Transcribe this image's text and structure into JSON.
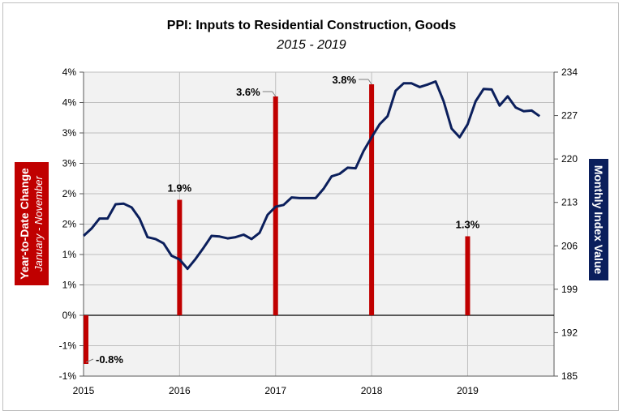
{
  "chart_data": {
    "type": "bar+line",
    "title": "PPI: Inputs to Residential Construction, Goods",
    "subtitle": "2015 - 2019",
    "left_axis": {
      "label": "Year-to-Date Change",
      "sublabel": "January - November",
      "range": [
        -1,
        4
      ],
      "tick_labels": [
        "4%",
        "4%",
        "3%",
        "3%",
        "2%",
        "2%",
        "1%",
        "1%",
        "0%",
        "-1%",
        "-1%"
      ]
    },
    "right_axis": {
      "label": "Monthly Index Value",
      "range": [
        185,
        234
      ],
      "tick_labels": [
        "234",
        "227",
        "220",
        "213",
        "206",
        "199",
        "192",
        "185"
      ],
      "tick_values": [
        234,
        227,
        220,
        213,
        206,
        199,
        192,
        185
      ]
    },
    "x_axis": {
      "tick_labels": [
        "2015",
        "2016",
        "2017",
        "2018",
        "2019"
      ],
      "tick_values": [
        2015,
        2016,
        2017,
        2018,
        2019
      ]
    },
    "grid": true,
    "bars": {
      "name": "Year-to-Date Change",
      "color": "#c00000",
      "x": [
        2015,
        2016,
        2017,
        2018,
        2019
      ],
      "values": [
        -0.8,
        1.9,
        3.6,
        3.8,
        1.3
      ],
      "labels": [
        "-0.8%",
        "1.9%",
        "3.6%",
        "3.8%",
        "1.3%"
      ]
    },
    "line": {
      "name": "Monthly Index Value",
      "color": "#0b1f5c",
      "x_start": 2015,
      "x_step_months": 1,
      "values": [
        207.6,
        208.8,
        210.4,
        210.4,
        212.7,
        212.8,
        212.2,
        210.4,
        207.4,
        207.1,
        206.4,
        204.4,
        203.8,
        202.3,
        203.9,
        205.7,
        207.6,
        207.5,
        207.2,
        207.4,
        207.8,
        207.1,
        208.1,
        211.0,
        212.3,
        212.6,
        213.8,
        213.7,
        213.7,
        213.7,
        215.2,
        217.2,
        217.6,
        218.6,
        218.5,
        221.3,
        223.5,
        225.6,
        226.9,
        231.0,
        232.2,
        232.2,
        231.6,
        232.0,
        232.5,
        229.3,
        224.9,
        223.5,
        225.6,
        229.3,
        231.3,
        231.2,
        228.6,
        230.1,
        228.3,
        227.7,
        227.8,
        226.9
      ]
    }
  }
}
